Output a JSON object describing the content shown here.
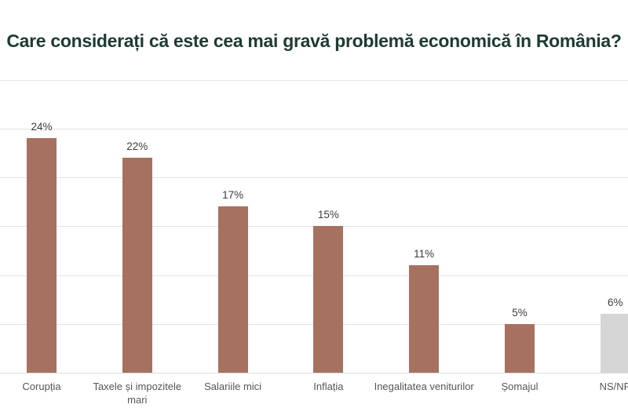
{
  "title": "Care considerați că este cea mai gravă problemă economică în România?",
  "colors": {
    "title_text": "#1e3a34",
    "bar_primary": "#a7715f",
    "bar_muted": "#d5d5d5",
    "value_label": "#3d3d3d",
    "category_label": "#565656",
    "gridline": "#e4e4e4",
    "axis_line": "#dcdcdc",
    "background": "#ffffff"
  },
  "chart_data": {
    "type": "bar",
    "title": "Care considerați că este cea mai gravă problemă economică în România?",
    "categories": [
      "Corupția",
      "Taxele și impozitele mari",
      "Salariile mici",
      "Inflația",
      "Inegalitatea veniturilor",
      "Șomajul",
      "NS/NR"
    ],
    "values": [
      24,
      22,
      17,
      15,
      11,
      5,
      6
    ],
    "value_labels": [
      "24%",
      "22%",
      "17%",
      "15%",
      "11%",
      "5%",
      "6%"
    ],
    "bar_colors": [
      "#a7715f",
      "#a7715f",
      "#a7715f",
      "#a7715f",
      "#a7715f",
      "#a7715f",
      "#d5d5d5"
    ],
    "xlabel": "",
    "ylabel": "",
    "ylim": [
      0,
      30
    ],
    "grid": true,
    "grid_step": 5,
    "legend": "none",
    "notes": "last category NS/NR partially cut off at right edge of view"
  }
}
